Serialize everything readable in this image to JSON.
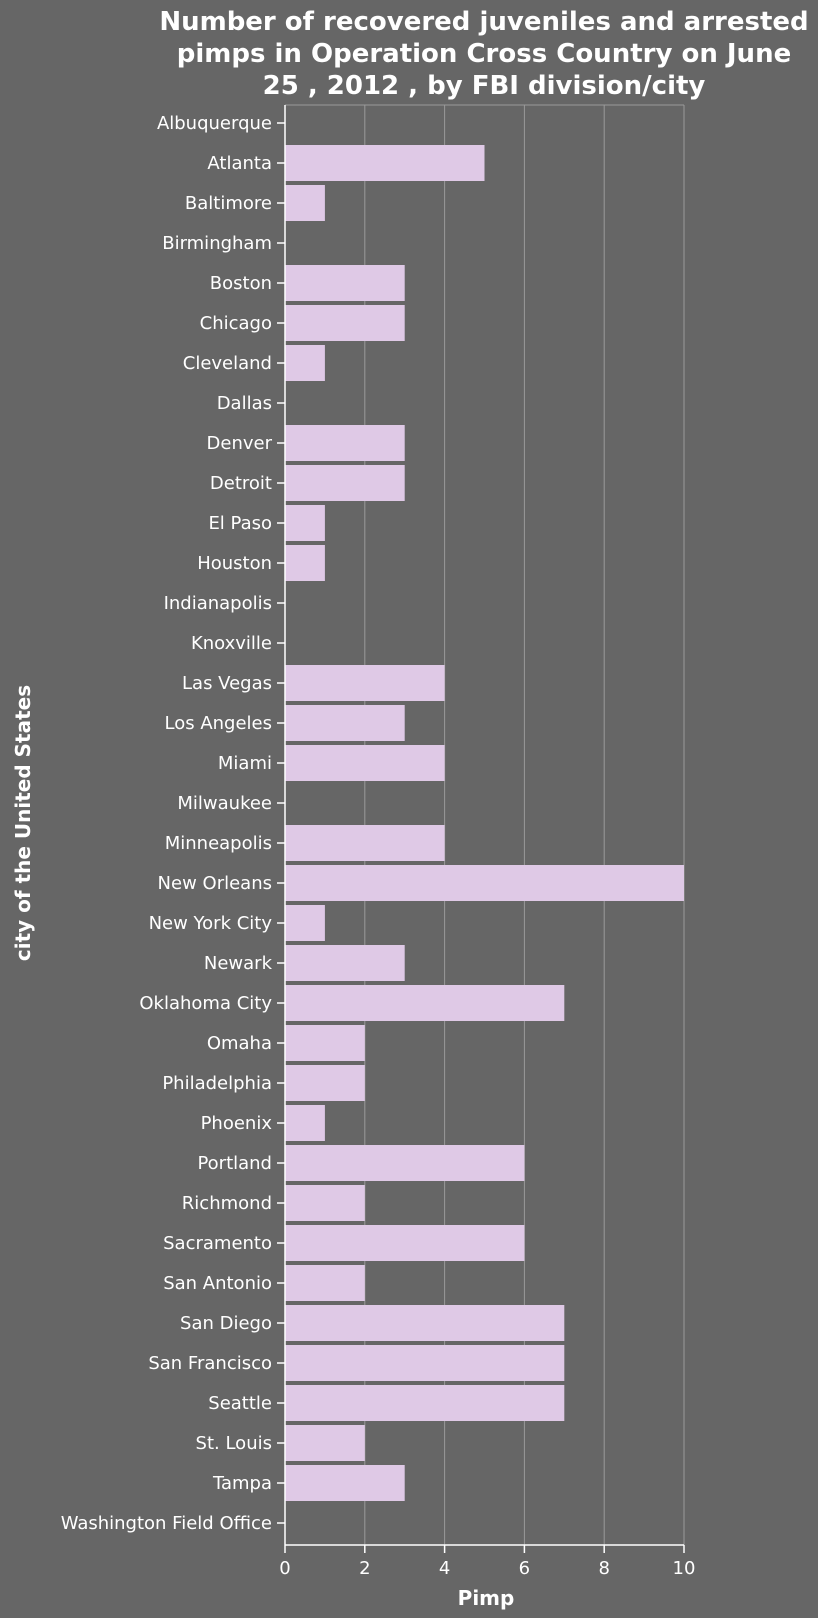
{
  "chart_data": {
    "type": "bar",
    "orientation": "horizontal",
    "title": "Number of recovered juveniles and arrested pimps in Operation Cross Country on June 25 , 2012 , by FBI division/city",
    "title_lines": [
      "Number of recovered juveniles and arrested",
      "pimps in Operation Cross Country on June",
      "25 , 2012 , by FBI division/city"
    ],
    "xlabel": "Pimp",
    "ylabel": "city of the United States",
    "xlim": [
      0,
      10
    ],
    "xticks": [
      0,
      2,
      4,
      6,
      8,
      10
    ],
    "grid": "vertical",
    "categories": [
      "Albuquerque",
      "Atlanta",
      "Baltimore",
      "Birmingham",
      "Boston",
      "Chicago",
      "Cleveland",
      "Dallas",
      "Denver",
      "Detroit",
      "El Paso",
      "Houston",
      "Indianapolis",
      "Knoxville",
      "Las Vegas",
      "Los Angeles",
      "Miami",
      "Milwaukee",
      "Minneapolis",
      "New Orleans",
      "New York City",
      "Newark",
      "Oklahoma City",
      "Omaha",
      "Philadelphia",
      "Phoenix",
      "Portland",
      "Richmond",
      "Sacramento",
      "San Antonio",
      "San Diego",
      "San Francisco",
      "Seattle",
      "St. Louis",
      "Tampa",
      "Washington Field Office"
    ],
    "values": [
      0,
      5,
      1,
      0,
      3,
      3,
      1,
      0,
      3,
      3,
      1,
      1,
      0,
      0,
      4,
      3,
      4,
      0,
      4,
      10,
      1,
      3,
      7,
      2,
      2,
      1,
      6,
      2,
      6,
      2,
      7,
      7,
      7,
      2,
      3,
      0
    ],
    "colors": {
      "background": "#666666",
      "bar": "#dfc9e6",
      "text": "#ffffff",
      "grid": "#9a9a9a"
    }
  }
}
